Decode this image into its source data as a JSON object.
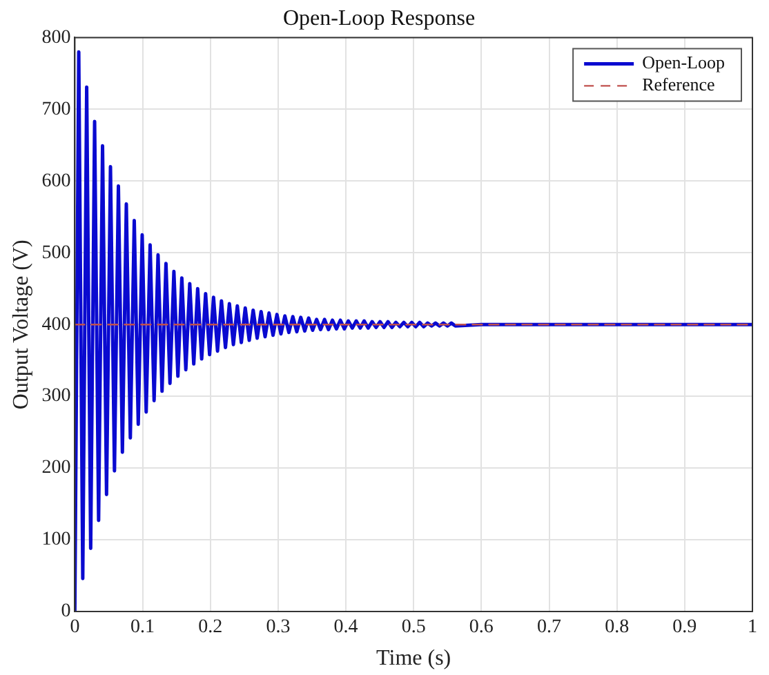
{
  "chart_data": {
    "type": "line",
    "title": "Open-Loop Response",
    "xlabel": "Time (s)",
    "ylabel": "Output Voltage (V)",
    "xlim": [
      0,
      1
    ],
    "xticks": [
      0,
      0.1,
      0.2,
      0.3,
      0.4,
      0.5,
      0.6,
      0.7,
      0.8,
      0.9,
      1
    ],
    "ylim": [
      0,
      800
    ],
    "yticks": [
      0,
      100,
      200,
      300,
      400,
      500,
      600,
      700,
      800
    ],
    "grid": true,
    "legend": "top right",
    "marker": "none",
    "series": [
      {
        "name": "Open-Loop",
        "color": "#0a0ad0",
        "line_style": "solid",
        "x": [
          0,
          0.0058,
          0.0117,
          0.0175,
          0.0234,
          0.0292,
          0.0351,
          0.0409,
          0.0468,
          0.0526,
          0.0585,
          0.0643,
          0.0702,
          0.076,
          0.0819,
          0.0877,
          0.0936,
          0.0994,
          0.1053,
          0.1111,
          0.117,
          0.1228,
          0.1287,
          0.1345,
          0.1404,
          0.1462,
          0.1521,
          0.1579,
          0.1638,
          0.1696,
          0.1755,
          0.1813,
          0.1872,
          0.193,
          0.1989,
          0.2047,
          0.2106,
          0.2164,
          0.2223,
          0.2281,
          0.234,
          0.2398,
          0.2457,
          0.2515,
          0.2574,
          0.2632,
          0.2691,
          0.2749,
          0.2808,
          0.2866,
          0.2925,
          0.2983,
          0.3042,
          0.31,
          0.3159,
          0.3217,
          0.3276,
          0.3334,
          0.3393,
          0.3451,
          0.351,
          0.3568,
          0.3627,
          0.3685,
          0.3744,
          0.3802,
          0.3861,
          0.3919,
          0.3978,
          0.4036,
          0.4095,
          0.4153,
          0.4212,
          0.427,
          0.4329,
          0.4387,
          0.4446,
          0.4504,
          0.4563,
          0.4621,
          0.468,
          0.4738,
          0.4797,
          0.4855,
          0.4914,
          0.4972,
          0.5031,
          0.5089,
          0.5148,
          0.5206,
          0.5265,
          0.5323,
          0.5382,
          0.544,
          0.5499,
          0.5557,
          0.5616,
          0.6,
          0.7,
          0.8,
          0.9,
          1
        ],
        "values": [
          0,
          780,
          46,
          731,
          88,
          683,
          127,
          649,
          163,
          620,
          196,
          593,
          222,
          568,
          242,
          545,
          261,
          525,
          278,
          511,
          294,
          497,
          307,
          485,
          318,
          474,
          328,
          465,
          337,
          457,
          345,
          450,
          352,
          443,
          358,
          438,
          363,
          433,
          368,
          429,
          372,
          426,
          375,
          423,
          378,
          420,
          381,
          418,
          383,
          416,
          385,
          414,
          387,
          412,
          389,
          411,
          390,
          410,
          391,
          409,
          392,
          407,
          393,
          407,
          393,
          406,
          394,
          406,
          394,
          405,
          395,
          405,
          395,
          405,
          395,
          404,
          396,
          404,
          396,
          404,
          396,
          403,
          397,
          403,
          397,
          403,
          397,
          403,
          397,
          402,
          398,
          402,
          398,
          402,
          398,
          402,
          398,
          400,
          400,
          400,
          400,
          400
        ]
      },
      {
        "name": "Reference",
        "color": "#c0504d",
        "line_style": "dashed",
        "x": [
          0,
          1
        ],
        "values": [
          400,
          400
        ]
      }
    ]
  }
}
